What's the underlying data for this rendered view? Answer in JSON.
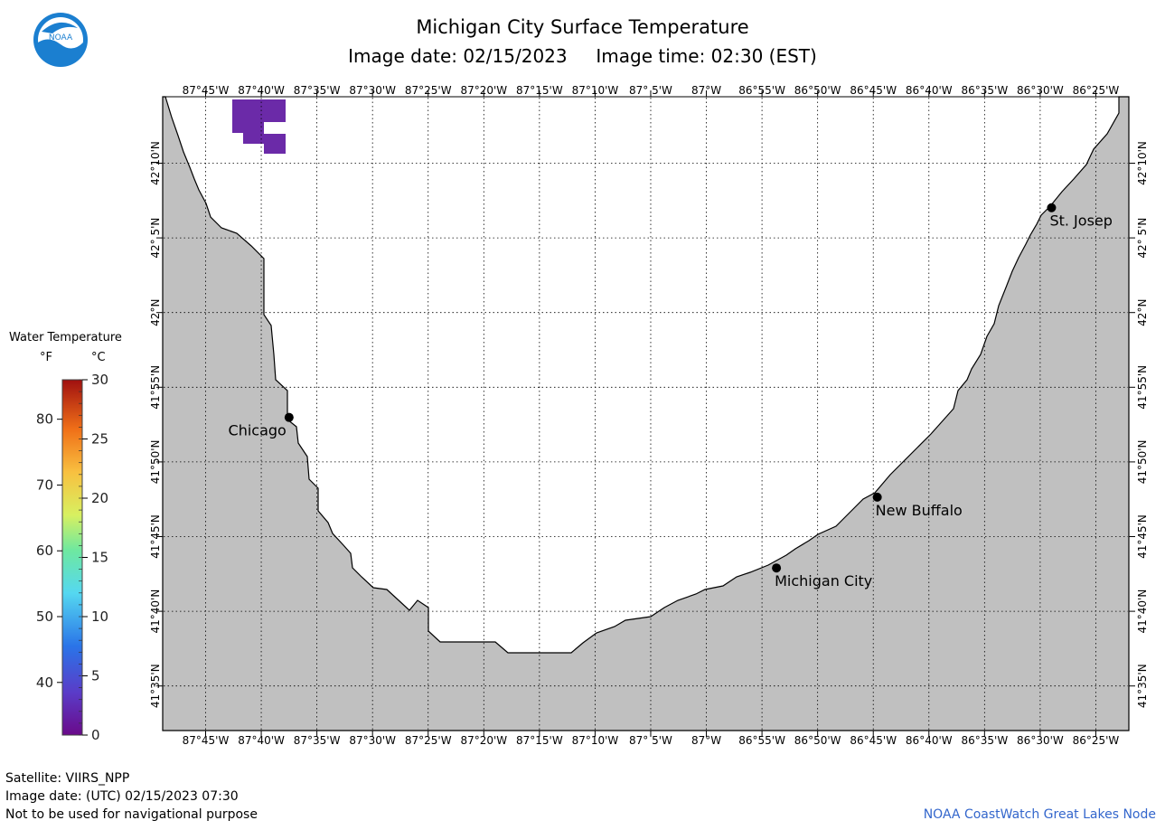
{
  "title": "Michigan City Surface Temperature",
  "subtitle": "Image date: 02/15/2023     Image time: 02:30 (EST)",
  "logo_text": "NOAA",
  "longitudes": [
    "87°45'W",
    "87°40'W",
    "87°35'W",
    "87°30'W",
    "87°25'W",
    "87°20'W",
    "87°15'W",
    "87°10'W",
    "87° 5'W",
    "87°W",
    "86°55'W",
    "86°50'W",
    "86°45'W",
    "86°40'W",
    "86°35'W",
    "86°30'W",
    "86°25'W"
  ],
  "latitudes": [
    "42°10'N",
    "42° 5'N",
    "42°N",
    "41°55'N",
    "41°50'N",
    "41°45'N",
    "41°40'N",
    "41°35'N"
  ],
  "cities": [
    {
      "name": "Chicago",
      "lon": -87.625,
      "lat": 41.883
    },
    {
      "name": "St. Josep",
      "lon": -86.483,
      "lat": 42.117
    },
    {
      "name": "New Buffalo",
      "lon": -86.744,
      "lat": 41.794
    },
    {
      "name": "Michigan City",
      "lon": -86.895,
      "lat": 41.715
    }
  ],
  "legend": {
    "title": "Water Temperature",
    "unit_f": "°F",
    "unit_c": "°C",
    "fahrenheit_ticks": [
      "80",
      "70",
      "60",
      "50",
      "40"
    ],
    "celsius_ticks": [
      "30",
      "25",
      "20",
      "15",
      "10",
      "5",
      "0"
    ]
  },
  "colors": {
    "land": "#c0c0c0",
    "water": "#ffffff",
    "cold_pixels": "#6b2aa8",
    "credit": "#3366cc"
  },
  "footer": {
    "satellite": "Satellite: VIIRS_NPP",
    "image_date_utc": "Image date: (UTC) 02/15/2023  07:30",
    "disclaimer": "Not to be used for navigational purpose",
    "credit": "NOAA CoastWatch Great Lakes Node"
  }
}
